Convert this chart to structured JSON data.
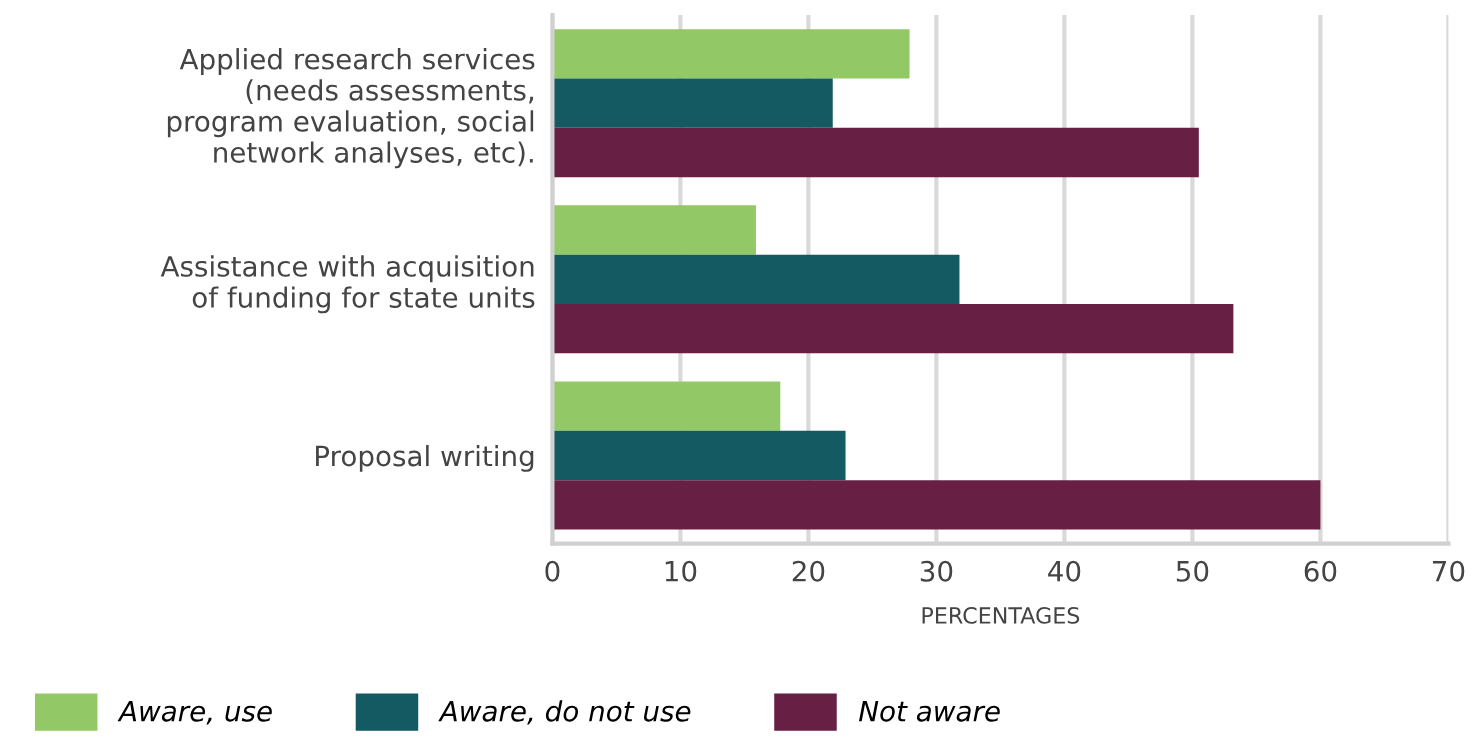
{
  "chart_data": {
    "type": "bar",
    "orientation": "horizontal",
    "xlabel": "PERCENTAGES",
    "categories": [
      "Applied research services\n(needs assessments,\nprogram evaluation, social\nnetwork analyses, etc).",
      "Assistance with acquisition\nof funding for state units",
      "Proposal writing"
    ],
    "series": [
      {
        "name": "Aware, use",
        "color": "#92c966",
        "values": [
          27.9,
          15.9,
          17.8
        ]
      },
      {
        "name": "Aware, do not use",
        "color": "#135a62",
        "values": [
          21.9,
          31.8,
          22.9
        ]
      },
      {
        "name": "Not aware",
        "color": "#672043",
        "values": [
          50.5,
          53.2,
          60.0
        ]
      }
    ],
    "xlim": [
      0,
      70
    ],
    "xticks": [
      0,
      10,
      20,
      30,
      40,
      50,
      60,
      70
    ],
    "grid": "x",
    "legend": "bottom"
  }
}
